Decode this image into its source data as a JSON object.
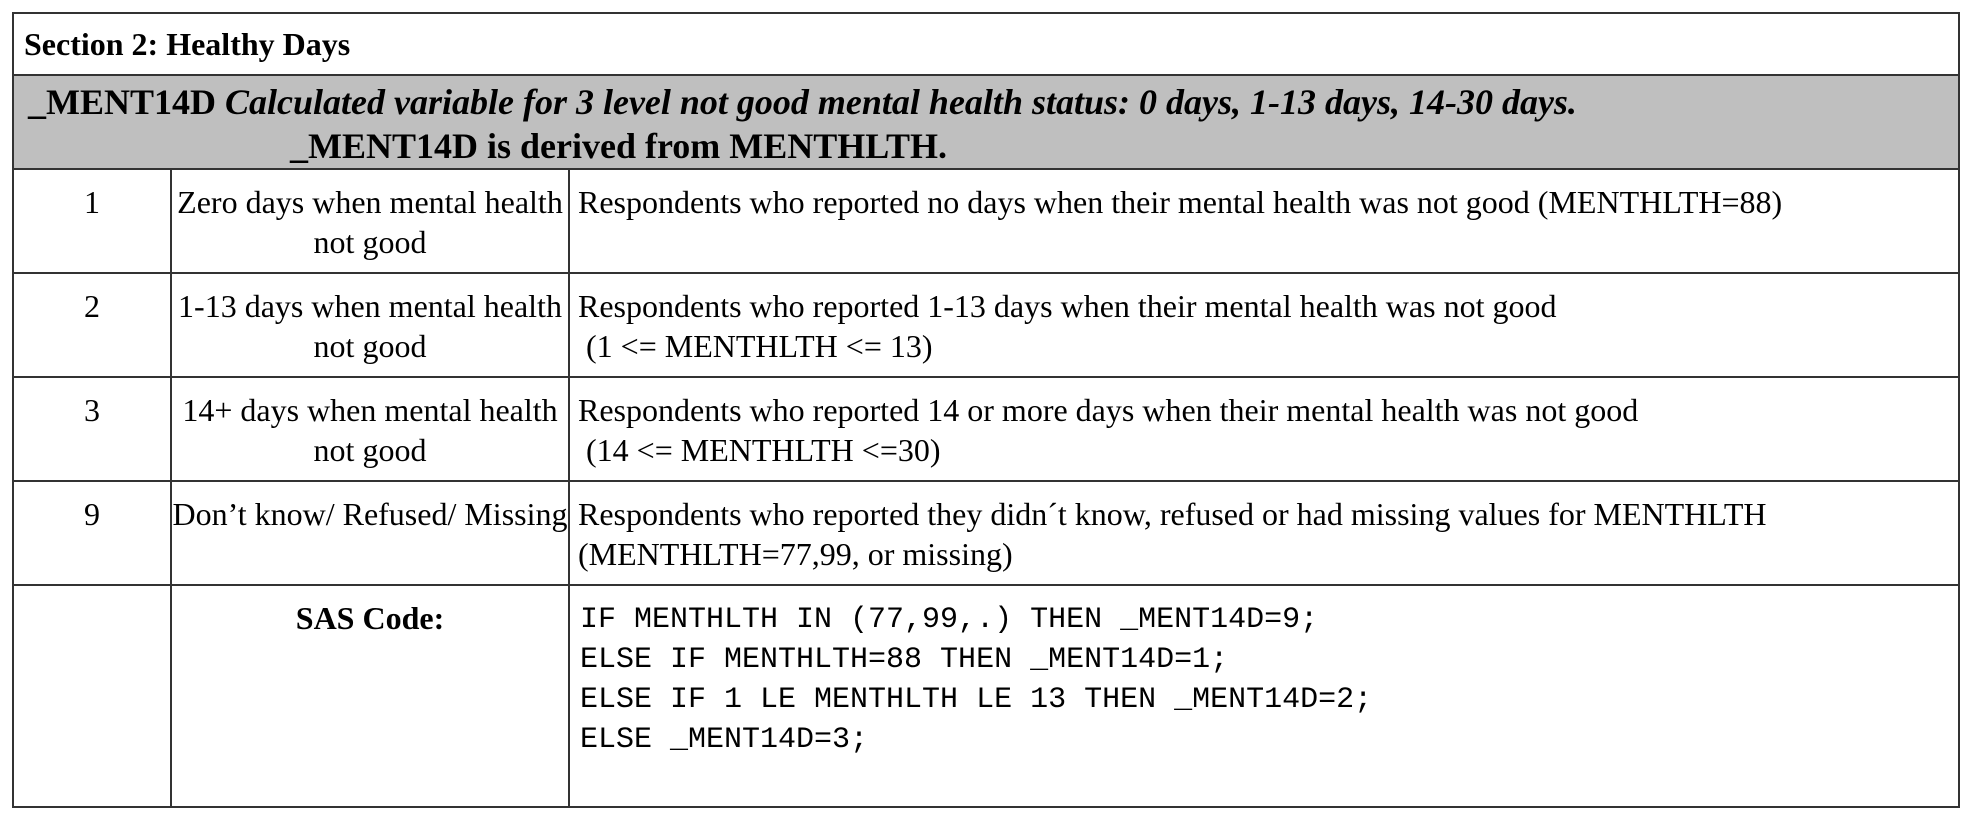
{
  "section": {
    "title": "Section 2: Healthy Days"
  },
  "variable": {
    "name": "_MENT14D",
    "description": "Calculated variable for 3 level not good mental health status: 0 days, 1-13 days, 14-30 days.",
    "derivation": "_MENT14D is derived from MENTHLTH."
  },
  "rows": [
    {
      "value": "1",
      "label": "Zero days when mental health not good",
      "description": "Respondents who reported no days when their mental health was not good (MENTHLTH=88)"
    },
    {
      "value": "2",
      "label": "1-13 days when mental health not good",
      "description": "Respondents who reported 1-13 days when their mental health was not good\n (1 <= MENTHLTH <= 13)"
    },
    {
      "value": "3",
      "label": "14+ days when mental health not good",
      "description": "Respondents who reported 14 or more days when their mental health was not good\n (14 <= MENTHLTH <=30)"
    },
    {
      "value": "9",
      "label": "Don’t know/ Refused/ Missing",
      "description": "Respondents who reported they didn´t know, refused or had missing values for MENTHLTH\n(MENTHLTH=77,99, or missing)"
    }
  ],
  "sas": {
    "label": "SAS Code:",
    "lines": [
      "IF MENTHLTH IN (77,99,.) THEN _MENT14D=9;",
      "ELSE IF MENTHLTH=88 THEN _MENT14D=1;",
      "ELSE IF 1 LE MENTHLTH LE 13 THEN _MENT14D=2;",
      "ELSE _MENT14D=3;"
    ]
  }
}
